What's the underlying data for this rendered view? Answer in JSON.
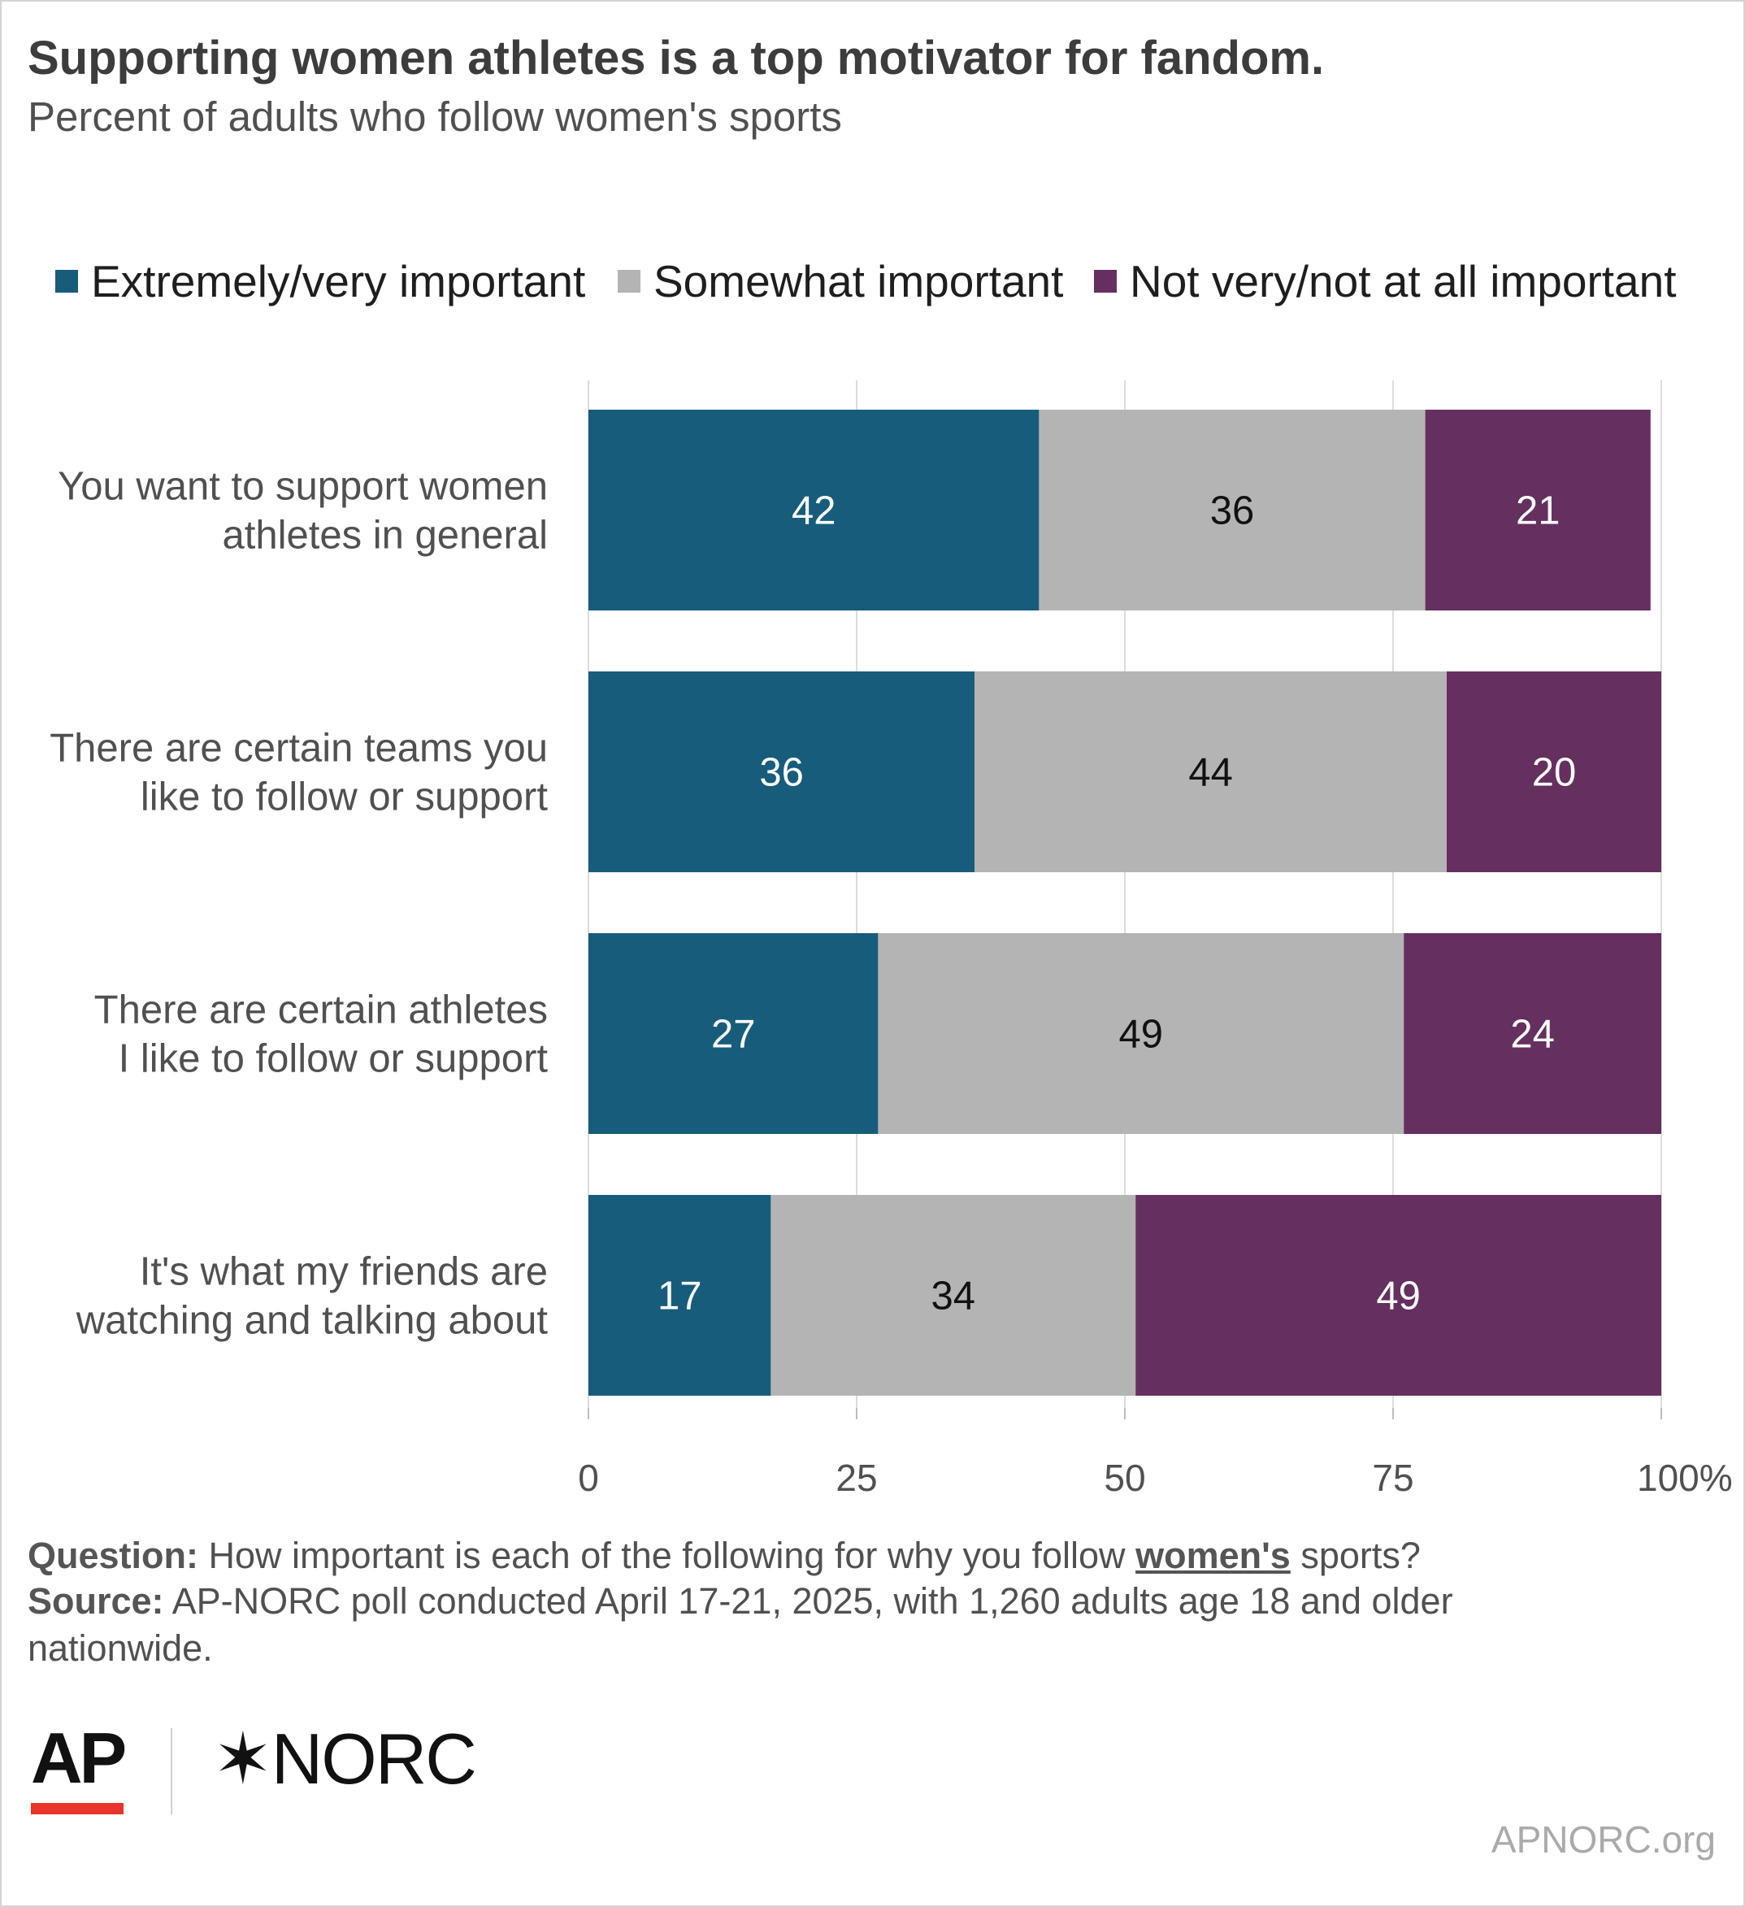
{
  "header": {
    "title": "Supporting women athletes is a top motivator for fandom.",
    "subtitle": "Percent of adults who follow women's sports"
  },
  "chart_data": {
    "type": "bar",
    "orientation": "horizontal",
    "stacked": true,
    "categories": [
      [
        "You want to support women",
        "athletes in general"
      ],
      [
        "There are certain teams you",
        "like to follow or support"
      ],
      [
        "There are certain athletes",
        "I like to follow or support"
      ],
      [
        "It's what my friends are",
        "watching and talking about"
      ]
    ],
    "series": [
      {
        "name": "Extremely/very important",
        "color": "#185c7c",
        "label_color": "#ffffff",
        "values": [
          42,
          36,
          27,
          17
        ]
      },
      {
        "name": "Somewhat important",
        "color": "#b4b4b4",
        "label_color": "#111111",
        "values": [
          36,
          44,
          49,
          34
        ]
      },
      {
        "name": "Not very/not at all important",
        "color": "#652f60",
        "label_color": "#ffffff",
        "values": [
          21,
          20,
          24,
          49
        ]
      }
    ],
    "xlim": [
      0,
      100
    ],
    "xticks": [
      {
        "value": 0,
        "label": "0"
      },
      {
        "value": 25,
        "label": "25"
      },
      {
        "value": 50,
        "label": "50"
      },
      {
        "value": 75,
        "label": "75"
      },
      {
        "value": 100,
        "label": "100%"
      }
    ],
    "grid": true,
    "legend_position": "top"
  },
  "footer": {
    "question_label": "Question:",
    "question_text_before": "How important is each of the following for why you follow",
    "question_emphasis": "women's",
    "question_text_after": "sports?",
    "source_label": "Source:",
    "source_text_line1": "AP-NORC poll conducted April 17-21, 2025, with 1,260 adults age 18 and older",
    "source_text_line2": "nationwide."
  },
  "branding": {
    "ap_logo": "AP",
    "norc_logo": "NORC",
    "norc_star": "✶",
    "url": "APNORC.org",
    "ap_accent_color": "#e8352c"
  }
}
